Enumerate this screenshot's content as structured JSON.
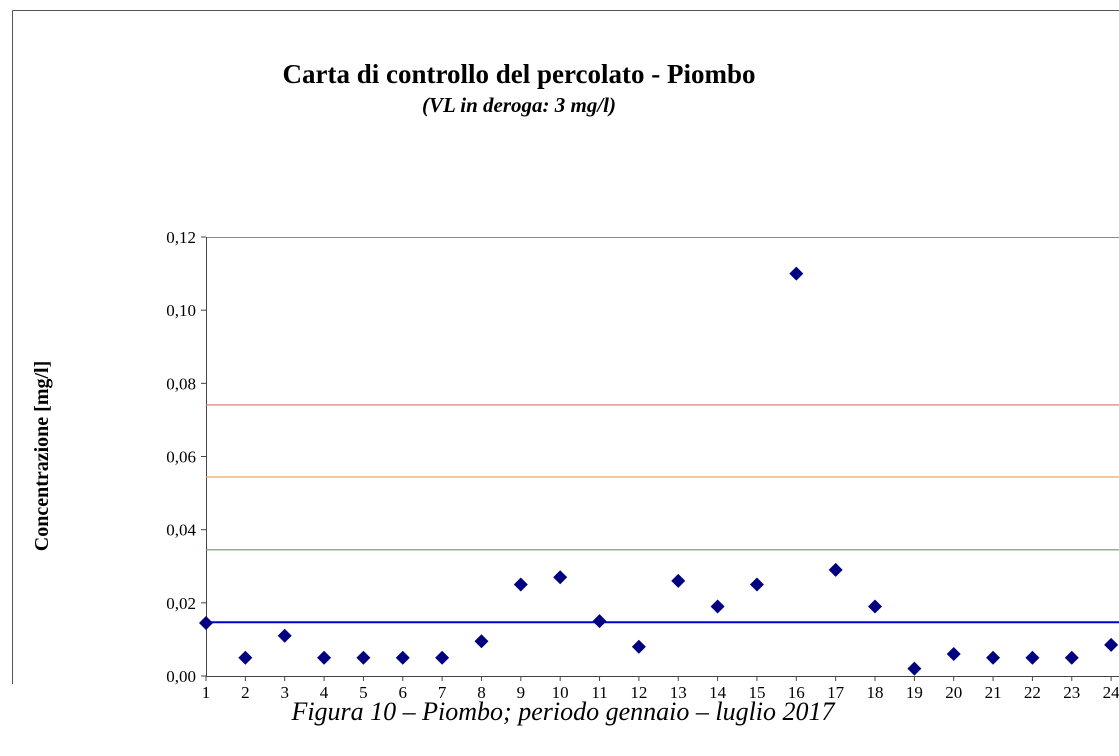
{
  "chart_data": {
    "type": "scatter",
    "title": "Carta di controllo del percolato - Piombo",
    "subtitle": "(VL in deroga: 3 mg/l)",
    "y_label": "Concentrazione [mg/l]",
    "caption": "Figura 10 – Piombo; periodo gennaio – luglio 2017",
    "color": "#000080",
    "x": [
      1,
      2,
      3,
      4,
      5,
      6,
      7,
      8,
      9,
      10,
      11,
      12,
      13,
      14,
      15,
      16,
      17,
      18,
      19,
      20,
      21,
      22,
      23,
      24
    ],
    "values": [
      0.0145,
      0.005,
      0.011,
      0.005,
      0.005,
      0.005,
      0.005,
      0.0095,
      0.025,
      0.027,
      0.015,
      0.008,
      0.026,
      0.019,
      0.025,
      0.11,
      0.029,
      0.019,
      0.002,
      0.006,
      0.005,
      0.005,
      0.005,
      0.0085
    ],
    "reference_lines": [
      {
        "value": 0.0147,
        "color": "#0000cc"
      },
      {
        "value": 0.0345,
        "color": "#4caf50"
      },
      {
        "value": 0.0544,
        "color": "#f4a460"
      },
      {
        "value": 0.0741,
        "color": "#e07070"
      }
    ],
    "xlim": [
      1,
      24.2
    ],
    "xticks": [
      1,
      2,
      3,
      4,
      5,
      6,
      7,
      8,
      9,
      10,
      11,
      12,
      13,
      14,
      15,
      16,
      17,
      18,
      19,
      20,
      21,
      22,
      23,
      24
    ],
    "ylim": [
      0,
      0.12
    ],
    "yticks": [
      {
        "value": 0,
        "label": "0,00"
      },
      {
        "value": 0.02,
        "label": "0,02"
      },
      {
        "value": 0.04,
        "label": "0,04"
      },
      {
        "value": 0.06,
        "label": "0,06"
      },
      {
        "value": 0.08,
        "label": "0,08"
      },
      {
        "value": 0.1,
        "label": "0,10"
      },
      {
        "value": 0.12,
        "label": "0,12"
      }
    ]
  }
}
